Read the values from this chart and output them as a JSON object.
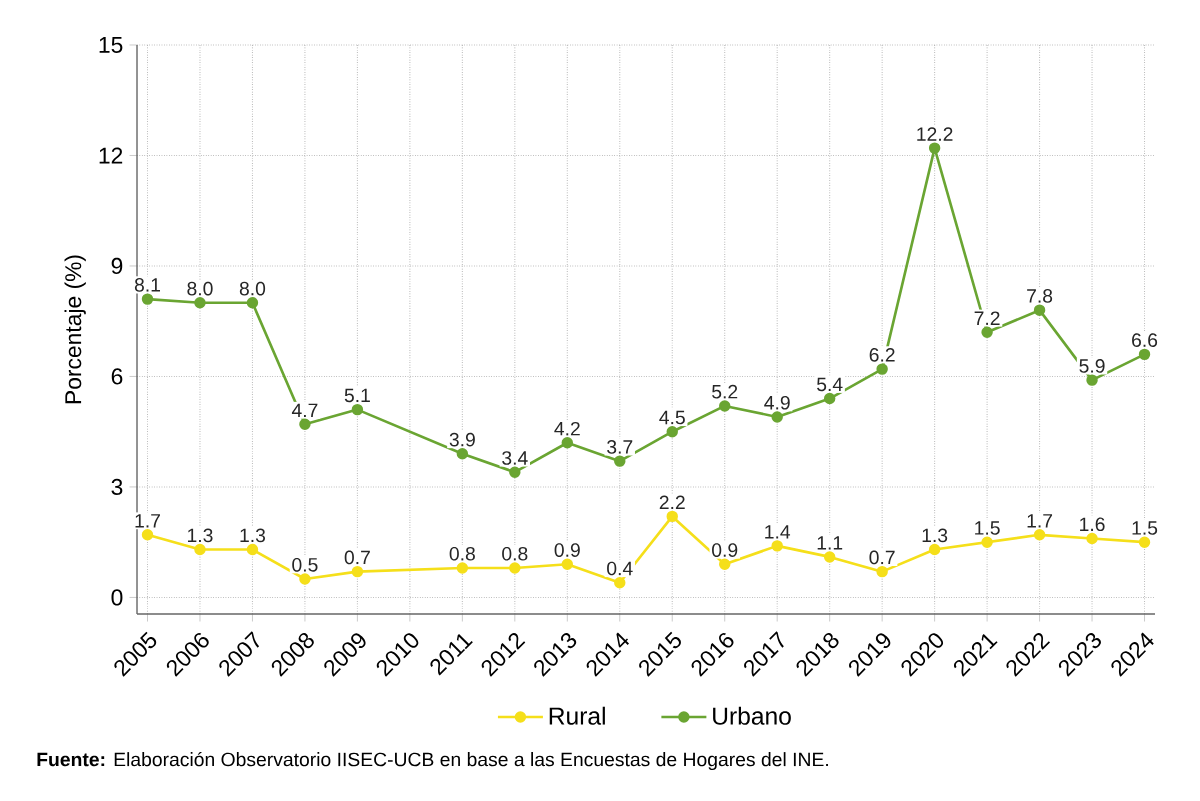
{
  "chart_data": {
    "type": "line",
    "ylabel": "Porcentaje (%)",
    "x": [
      2005,
      2006,
      2007,
      2008,
      2009,
      2011,
      2012,
      2013,
      2014,
      2015,
      2016,
      2017,
      2018,
      2019,
      2020,
      2021,
      2022,
      2023,
      2024
    ],
    "series": [
      {
        "name": "Rural",
        "color": "#f5df1a",
        "values": [
          1.7,
          1.3,
          1.3,
          0.5,
          0.7,
          0.8,
          0.8,
          0.9,
          0.4,
          2.2,
          0.9,
          1.4,
          1.1,
          0.7,
          1.3,
          1.5,
          1.7,
          1.6,
          1.5
        ],
        "value_labels": [
          "1.7",
          "1.3",
          "1.3",
          "0.5",
          "0.7",
          "0.8",
          "0.8",
          "0.9",
          "0.4",
          "2.2",
          "0.9",
          "1.4",
          "1.1",
          "0.7",
          "1.3",
          "1.5",
          "1.7",
          "1.6",
          "1.5"
        ]
      },
      {
        "name": "Urbano",
        "color": "#6aa532",
        "values": [
          8.1,
          8.0,
          8.0,
          4.7,
          5.1,
          3.9,
          3.4,
          4.2,
          3.7,
          4.5,
          5.2,
          4.9,
          5.4,
          6.2,
          12.2,
          7.2,
          7.8,
          5.9,
          6.6
        ],
        "value_labels": [
          "8.1",
          "8.0",
          "8.0",
          "4.7",
          "5.1",
          "3.9",
          "3.4",
          "4.2",
          "3.7",
          "4.5",
          "5.2",
          "4.9",
          "5.4",
          "6.2",
          "12.2",
          "7.2",
          "7.8",
          "5.9",
          "6.6"
        ]
      }
    ],
    "xlim": [
      2004.8,
      2024.2
    ],
    "xticks": [
      2005,
      2006,
      2007,
      2008,
      2009,
      2010,
      2011,
      2012,
      2013,
      2014,
      2015,
      2016,
      2017,
      2018,
      2019,
      2020,
      2021,
      2022,
      2023,
      2024
    ],
    "ylim": [
      -0.45,
      15
    ],
    "yticks": [
      0,
      3,
      6,
      9,
      12,
      15
    ],
    "grid": true,
    "legend": "bottom",
    "marker": "circle",
    "line_style": "solid",
    "annotations": [
      "**Fuente:** Elaboración Observatorio IISEC-UCB en base a las Encuestas de Hogares del INE."
    ]
  }
}
